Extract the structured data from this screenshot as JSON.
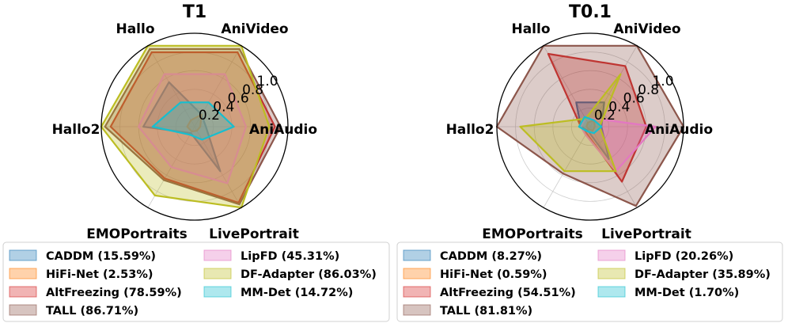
{
  "chart_data": [
    {
      "type": "radar",
      "title": "T1",
      "axes": [
        "AniAudio",
        "AniVideo",
        "Hallo",
        "Hallo2",
        "EMOPortraits",
        "LivePortrait"
      ],
      "rlim": [
        0,
        1.0
      ],
      "radial_ticks": [
        "0.2",
        "0.4",
        "0.6",
        "0.8",
        "1.0"
      ],
      "radial_tick_values": [
        0.2,
        0.4,
        0.6,
        0.8,
        1.0
      ],
      "grid": true,
      "legend_position": "bottom",
      "series": [
        {
          "name": "CADDM (15.59%)",
          "color": "#1f77b4",
          "values": [
            0.12,
            0.15,
            0.55,
            0.55,
            0.08,
            0.55
          ]
        },
        {
          "name": "HiFi-Net (2.53%)",
          "color": "#ff7f0e",
          "values": [
            0.06,
            0.15,
            0.08,
            0.08,
            0.06,
            0.05
          ]
        },
        {
          "name": "AltFreezing (78.59%)",
          "color": "#d62728",
          "values": [
            0.86,
            0.92,
            0.92,
            0.9,
            0.64,
            0.94
          ]
        },
        {
          "name": "TALL (86.71%)",
          "color": "#8c564b",
          "values": [
            0.92,
            0.96,
            0.96,
            0.96,
            0.66,
            0.96
          ]
        },
        {
          "name": "LipFD (45.31%)",
          "color": "#e377c2",
          "values": [
            0.55,
            0.65,
            0.65,
            0.6,
            0.5,
            0.7
          ]
        },
        {
          "name": "DF-Adapter (86.03%)",
          "color": "#bcbd22",
          "values": [
            0.8,
            1.0,
            1.0,
            1.0,
            0.85,
            1.0
          ]
        },
        {
          "name": "MM-Det (14.72%)",
          "color": "#17becf",
          "values": [
            0.42,
            0.3,
            0.3,
            0.45,
            0.1,
            0.16
          ]
        }
      ]
    },
    {
      "type": "radar",
      "title": "T0.1",
      "axes": [
        "AniAudio",
        "AniVideo",
        "Hallo",
        "Hallo2",
        "EMOPortraits",
        "LivePortrait"
      ],
      "rlim": [
        0,
        1.0
      ],
      "radial_ticks": [
        "0.2",
        "0.4",
        "0.6",
        "0.8",
        "1.0"
      ],
      "radial_tick_values": [
        0.2,
        0.4,
        0.6,
        0.8,
        1.0
      ],
      "grid": true,
      "legend_position": "bottom",
      "series": [
        {
          "name": "CADDM (8.27%)",
          "color": "#1f77b4",
          "values": [
            0.12,
            0.3,
            0.3,
            0.1,
            0.05,
            0.4
          ]
        },
        {
          "name": "HiFi-Net (0.59%)",
          "color": "#ff7f0e",
          "values": [
            0.05,
            0.08,
            0.05,
            0.04,
            0.03,
            0.05
          ]
        },
        {
          "name": "AltFreezing (54.51%)",
          "color": "#d62728",
          "values": [
            0.6,
            0.75,
            0.9,
            0.1,
            0.08,
            0.68
          ]
        },
        {
          "name": "TALL (81.81%)",
          "color": "#8c564b",
          "values": [
            1.0,
            1.0,
            1.0,
            1.0,
            0.58,
            0.98
          ]
        },
        {
          "name": "LipFD (20.26%)",
          "color": "#e377c2",
          "values": [
            0.7,
            0.1,
            0.1,
            0.1,
            0.1,
            0.55
          ]
        },
        {
          "name": "DF-Adapter (35.89%)",
          "color": "#bcbd22",
          "values": [
            0.1,
            0.65,
            0.1,
            0.75,
            0.55,
            0.55
          ]
        },
        {
          "name": "MM-Det (1.70%)",
          "color": "#17becf",
          "values": [
            0.12,
            0.08,
            0.12,
            0.12,
            0.06,
            0.08
          ]
        }
      ]
    }
  ]
}
